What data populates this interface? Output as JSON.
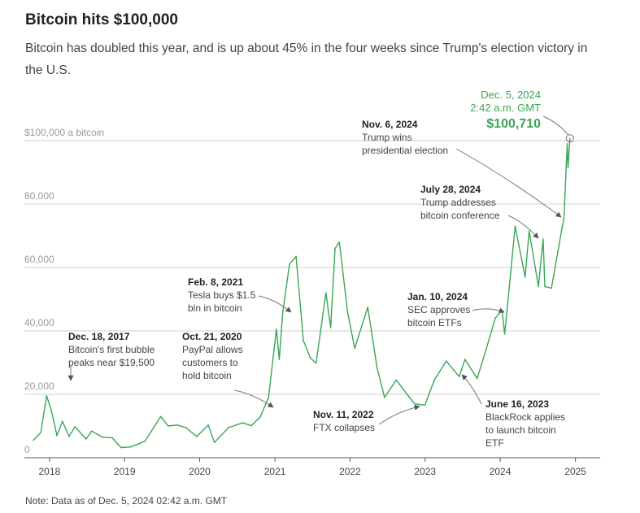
{
  "title": "Bitcoin hits $100,000",
  "subtitle": "Bitcoin has doubled this year, and is up about 45% in the four weeks since Trump's election victory in the U.S.",
  "note": "Note: Data as of Dec. 5, 2024 02:42 a.m. GMT",
  "colors": {
    "line": "#3aa655",
    "highlight": "#3aa655",
    "grid": "#cfcfcf",
    "annotation_arrow": "#777777"
  },
  "chart_data": {
    "type": "line",
    "x_tick_labels": [
      "2018",
      "2019",
      "2020",
      "2021",
      "2022",
      "2023",
      "2024",
      "2025"
    ],
    "y_tick_labels": [
      "0",
      "20,000",
      "40,000",
      "60,000",
      "80,000",
      "$100,000 a bitcoin"
    ],
    "y_ticks": [
      0,
      20000,
      40000,
      60000,
      80000,
      100000
    ],
    "xlim": [
      "2017-09-01",
      "2025-05-01"
    ],
    "ylim": [
      0,
      100000
    ],
    "grid": true,
    "series": [
      {
        "values": [
          [
            "2017-10-15",
            5500
          ],
          [
            "2017-11-20",
            8000
          ],
          [
            "2017-12-18",
            19500
          ],
          [
            "2018-01-10",
            15000
          ],
          [
            "2018-02-06",
            7000
          ],
          [
            "2018-03-05",
            11500
          ],
          [
            "2018-04-06",
            6700
          ],
          [
            "2018-05-05",
            9800
          ],
          [
            "2018-06-28",
            5900
          ],
          [
            "2018-07-25",
            8400
          ],
          [
            "2018-09-15",
            6500
          ],
          [
            "2018-11-01",
            6300
          ],
          [
            "2018-12-15",
            3200
          ],
          [
            "2019-02-01",
            3400
          ],
          [
            "2019-04-10",
            5200
          ],
          [
            "2019-06-26",
            13000
          ],
          [
            "2019-08-01",
            10000
          ],
          [
            "2019-09-15",
            10300
          ],
          [
            "2019-10-26",
            9500
          ],
          [
            "2019-12-18",
            6700
          ],
          [
            "2020-02-12",
            10300
          ],
          [
            "2020-03-13",
            4800
          ],
          [
            "2020-05-20",
            9500
          ],
          [
            "2020-07-28",
            11000
          ],
          [
            "2020-09-08",
            10100
          ],
          [
            "2020-10-21",
            12800
          ],
          [
            "2020-12-01",
            19000
          ],
          [
            "2021-01-08",
            40500
          ],
          [
            "2021-01-22",
            31000
          ],
          [
            "2021-02-08",
            46000
          ],
          [
            "2021-03-13",
            61000
          ],
          [
            "2021-04-14",
            63500
          ],
          [
            "2021-05-19",
            37000
          ],
          [
            "2021-06-22",
            31500
          ],
          [
            "2021-07-20",
            29800
          ],
          [
            "2021-09-06",
            52000
          ],
          [
            "2021-09-29",
            41000
          ],
          [
            "2021-10-20",
            66000
          ],
          [
            "2021-11-10",
            68000
          ],
          [
            "2021-12-20",
            46000
          ],
          [
            "2022-01-24",
            34500
          ],
          [
            "2022-03-28",
            47500
          ],
          [
            "2022-05-12",
            28500
          ],
          [
            "2022-06-18",
            19000
          ],
          [
            "2022-08-14",
            24500
          ],
          [
            "2022-10-15",
            19200
          ],
          [
            "2022-11-11",
            17000
          ],
          [
            "2022-12-31",
            16600
          ],
          [
            "2023-02-15",
            24500
          ],
          [
            "2023-04-14",
            30500
          ],
          [
            "2023-06-16",
            25600
          ],
          [
            "2023-07-14",
            31000
          ],
          [
            "2023-09-11",
            25000
          ],
          [
            "2023-10-24",
            34000
          ],
          [
            "2023-12-08",
            44000
          ],
          [
            "2024-01-10",
            46500
          ],
          [
            "2024-01-23",
            39000
          ],
          [
            "2024-03-14",
            73000
          ],
          [
            "2024-05-01",
            57000
          ],
          [
            "2024-05-21",
            71500
          ],
          [
            "2024-07-05",
            54000
          ],
          [
            "2024-07-28",
            69000
          ],
          [
            "2024-08-05",
            54000
          ],
          [
            "2024-09-06",
            53500
          ],
          [
            "2024-10-29",
            73000
          ],
          [
            "2024-11-06",
            75500
          ],
          [
            "2024-11-22",
            99000
          ],
          [
            "2024-11-26",
            91500
          ],
          [
            "2024-12-05",
            100710
          ]
        ]
      }
    ],
    "annotations": [
      {
        "date": "2017-12-18",
        "value": 19500,
        "date_label": "Dec. 18, 2017",
        "lines": [
          "Bitcoin's first bubble",
          "peaks near $19,500"
        ]
      },
      {
        "date": "2020-10-21",
        "value": 12800,
        "date_label": "Oct. 21, 2020",
        "lines": [
          "PayPal allows",
          "customers to",
          "hold bitcoin"
        ]
      },
      {
        "date": "2021-02-08",
        "value": 46000,
        "date_label": "Feb. 8, 2021",
        "lines": [
          "Tesla buys $1.5",
          "bln in bitcoin"
        ]
      },
      {
        "date": "2022-11-11",
        "value": 17000,
        "date_label": "Nov. 11, 2022",
        "lines": [
          "FTX collapses"
        ]
      },
      {
        "date": "2023-06-16",
        "value": 25600,
        "date_label": "June 16, 2023",
        "lines": [
          "BlackRock applies",
          "to launch bitcoin",
          "ETF"
        ]
      },
      {
        "date": "2024-01-10",
        "value": 46500,
        "date_label": "Jan. 10, 2024",
        "lines": [
          "SEC approves",
          "bitcoin ETFs"
        ]
      },
      {
        "date": "2024-07-28",
        "value": 69000,
        "date_label": "July 28, 2024",
        "lines": [
          "Trump addresses",
          "bitcoin conference"
        ]
      },
      {
        "date": "2024-11-06",
        "value": 75500,
        "date_label": "Nov. 6, 2024",
        "lines": [
          "Trump wins",
          "presidential election"
        ]
      }
    ],
    "highlight": {
      "date": "2024-12-05",
      "value": 100710,
      "date_label": "Dec. 5, 2024",
      "time_label": "2:42 a.m. GMT",
      "value_label": "$100,710"
    }
  }
}
